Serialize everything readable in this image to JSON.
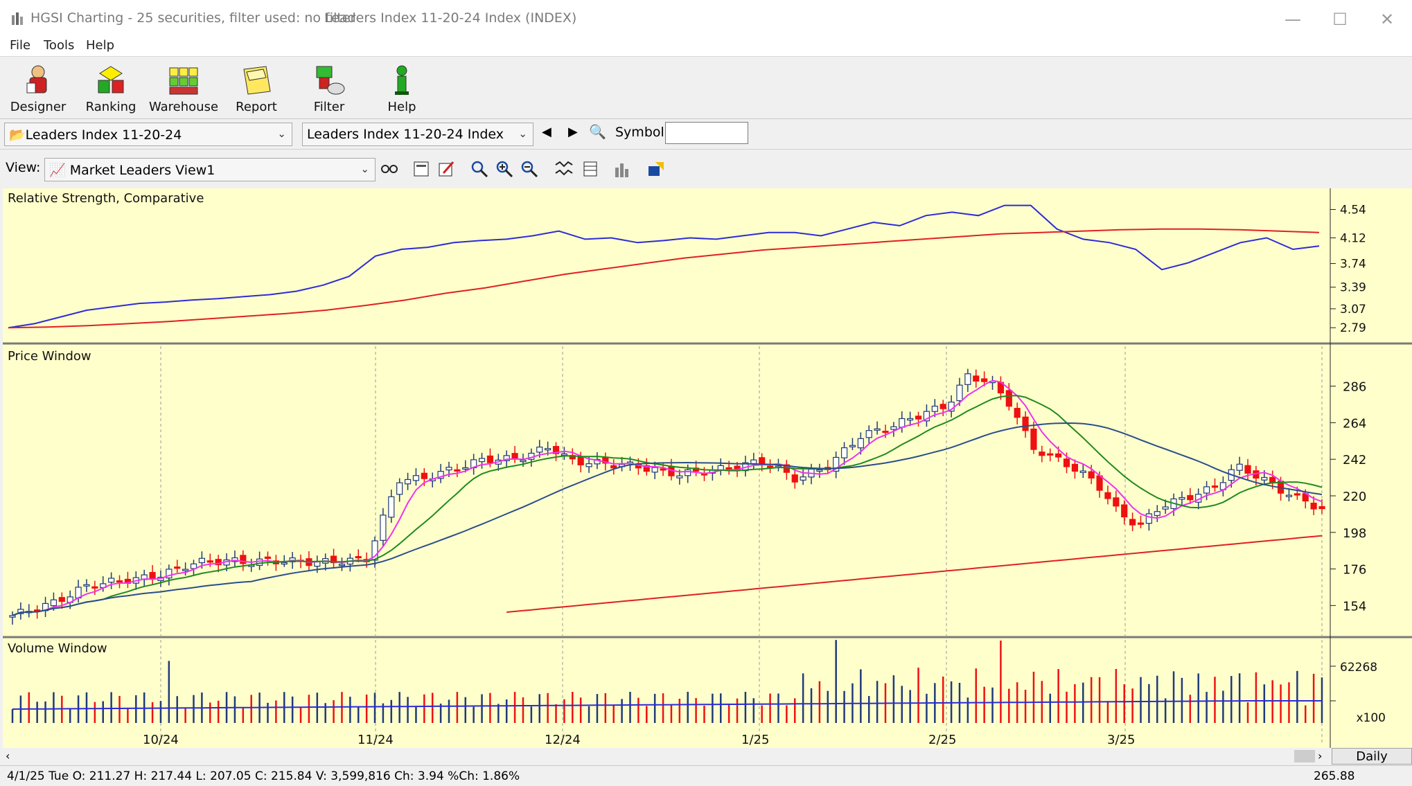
{
  "window": {
    "title": "HGSI Charting - 25 securities, filter used: no filter",
    "subtitle": "Leaders Index 11-20-24 Index (INDEX)"
  },
  "menu": [
    "File",
    "Tools",
    "Help"
  ],
  "toolbar": [
    {
      "label": "Designer",
      "icon": "designer-icon"
    },
    {
      "label": "Ranking",
      "icon": "ranking-icon"
    },
    {
      "label": "Warehouse",
      "icon": "warehouse-icon"
    },
    {
      "label": "Report",
      "icon": "report-icon"
    },
    {
      "label": "Filter",
      "icon": "filter-icon"
    },
    {
      "label": "Help",
      "icon": "help-icon"
    }
  ],
  "combos": {
    "list_value": "Leaders Index 11-20-24",
    "security_value": "Leaders Index 11-20-24 Index",
    "symbol_label": "Symbol:",
    "symbol_value": ""
  },
  "view": {
    "label": "View:",
    "value": "Market Leaders View1"
  },
  "panes": {
    "rs_title": "Relative Strength, Comparative",
    "price_title": "Price Window",
    "volume_title": "Volume Window"
  },
  "status": {
    "text": "4/1/25 Tue O: 211.27 H: 217.44 L: 207.05 C: 215.84 V: 3,599,816 Ch: 3.94 %Ch: 1.86%",
    "value": "265.88"
  },
  "daily_label": "Daily",
  "colors": {
    "background": "#ffffcc",
    "up_candle": "#1f3a78",
    "down_candle": "#ee1111",
    "rs_line": "#2b2bd6",
    "ma_red": "#e02020",
    "ma_magenta": "#ee33ee",
    "ma_green": "#1f8a1f",
    "ma_blue": "#2a4d8a"
  },
  "chart_data": [
    {
      "type": "line",
      "name": "Relative Strength, Comparative",
      "y_ticks": [
        "4.54",
        "4.12",
        "3.74",
        "3.39",
        "3.07",
        "2.79"
      ],
      "series": [
        {
          "values": [
            2.79,
            2.85,
            2.95,
            3.05,
            3.1,
            3.15,
            3.17,
            3.2,
            3.22,
            3.25,
            3.28,
            3.33,
            3.42,
            3.55,
            3.85,
            3.95,
            3.98,
            4.05,
            4.08,
            4.1,
            4.15,
            4.22,
            4.1,
            4.12,
            4.05,
            4.08,
            4.12,
            4.1,
            4.15,
            4.2,
            4.2,
            4.15,
            4.25,
            4.35,
            4.3,
            4.45,
            4.5,
            4.45,
            4.6,
            4.6,
            4.25,
            4.1,
            4.05,
            3.95,
            3.65,
            3.75,
            3.9,
            4.05,
            4.12,
            3.95,
            4.0
          ]
        },
        {
          "values": [
            2.79,
            2.8,
            2.82,
            2.85,
            2.88,
            2.92,
            2.96,
            3.0,
            3.05,
            3.12,
            3.2,
            3.3,
            3.38,
            3.48,
            3.58,
            3.66,
            3.74,
            3.82,
            3.88,
            3.94,
            3.98,
            4.02,
            4.06,
            4.1,
            4.14,
            4.18,
            4.2,
            4.22,
            4.24,
            4.25,
            4.25,
            4.24,
            4.22,
            4.2
          ]
        }
      ]
    },
    {
      "type": "candlestick",
      "name": "Price Window",
      "x_ticks": [
        "10/24",
        "11/24",
        "12/24",
        "1/25",
        "2/25",
        "3/25"
      ],
      "y_ticks": [
        "286",
        "264",
        "242",
        "220",
        "198",
        "176",
        "154"
      ],
      "last": {
        "date": "4/1/25",
        "open": 211.27,
        "high": 217.44,
        "low": 207.05,
        "close": 215.84
      }
    },
    {
      "type": "bar",
      "name": "Volume Window",
      "y_ticks": [
        "62268"
      ],
      "unit": "x100"
    }
  ]
}
